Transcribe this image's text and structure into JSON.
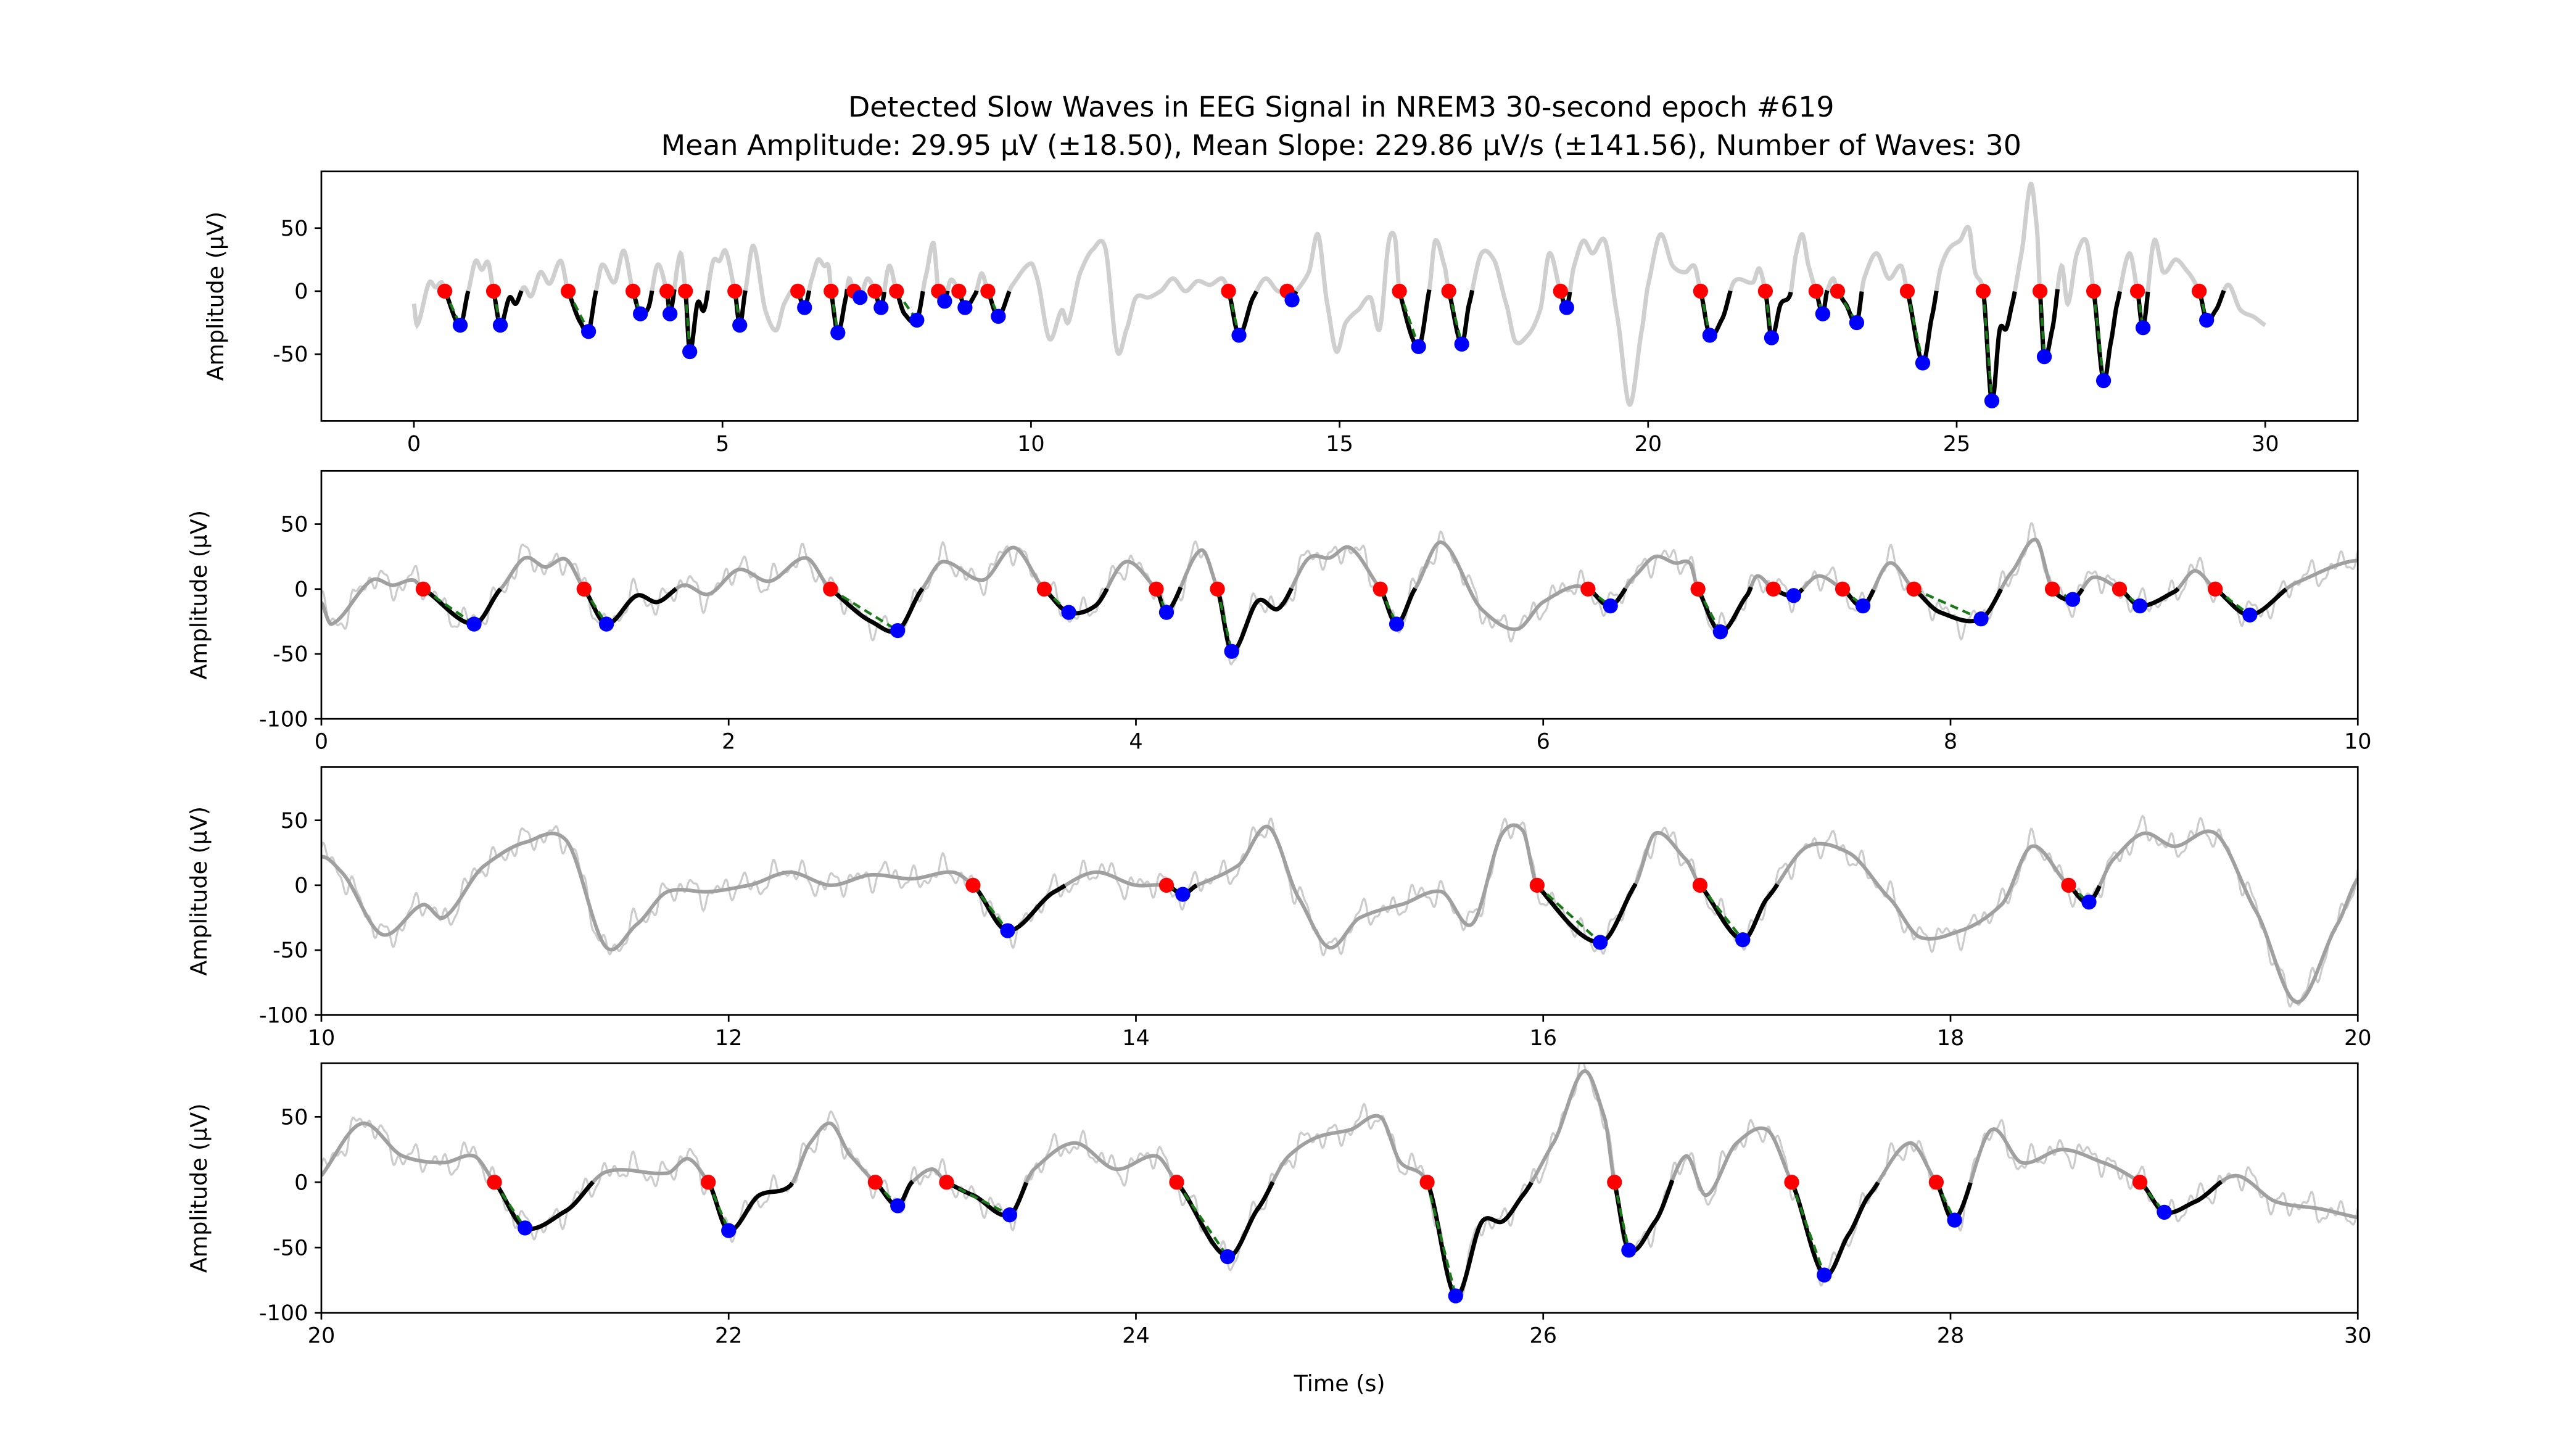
{
  "chart_data": {
    "type": "line",
    "title": "Detected Slow Waves in EEG Signal in NREM3 30-second epoch #619",
    "subtitle": "Mean Amplitude: 29.95 µV (±18.50), Mean Slope: 229.86 µV/s (±141.56), Number of Waves: 30",
    "xlabel": "Time (s)",
    "ylabel": "Amplitude (µV)",
    "colors": {
      "raw": "#cccccc",
      "smooth_overview": "#cfcfcf",
      "smooth": "#a0a0a0",
      "wave": "#000000",
      "start": "#ff0000",
      "trough": "#0000ff",
      "slope": "#1a7a1a"
    },
    "panels": [
      {
        "xlim": [
          -1.5,
          31.5
        ],
        "ylim": [
          -103,
          95
        ],
        "xticks": [
          0,
          5,
          10,
          15,
          20,
          25,
          30
        ],
        "yticks": [
          -50,
          0,
          50
        ],
        "show_raw": false,
        "xlabel": ""
      },
      {
        "xlim": [
          0,
          10
        ],
        "ylim": [
          -100,
          91
        ],
        "xticks": [
          0,
          2,
          4,
          6,
          8,
          10
        ],
        "yticks": [
          -100,
          -50,
          0,
          50
        ],
        "show_raw": true,
        "xlabel": ""
      },
      {
        "xlim": [
          10,
          20
        ],
        "ylim": [
          -100,
          91
        ],
        "xticks": [
          10,
          12,
          14,
          16,
          18,
          20
        ],
        "yticks": [
          -100,
          -50,
          0,
          50
        ],
        "show_raw": true,
        "xlabel": ""
      },
      {
        "xlim": [
          20,
          30
        ],
        "ylim": [
          -100,
          91
        ],
        "xticks": [
          20,
          22,
          24,
          26,
          28,
          30
        ],
        "yticks": [
          -100,
          -50,
          0,
          50
        ],
        "show_raw": true,
        "xlabel": "Time (s)"
      }
    ],
    "waves": [
      {
        "start": 0.5,
        "trough_t": 0.75,
        "trough_amp": -27
      },
      {
        "start": 1.29,
        "trough_t": 1.4,
        "trough_amp": -27
      },
      {
        "start": 2.5,
        "trough_t": 2.83,
        "trough_amp": -32
      },
      {
        "start": 3.55,
        "trough_t": 3.67,
        "trough_amp": -18
      },
      {
        "start": 4.1,
        "trough_t": 4.15,
        "trough_amp": -18
      },
      {
        "start": 4.4,
        "trough_t": 4.47,
        "trough_amp": -48
      },
      {
        "start": 5.2,
        "trough_t": 5.28,
        "trough_amp": -27
      },
      {
        "start": 6.22,
        "trough_t": 6.33,
        "trough_amp": -13
      },
      {
        "start": 6.76,
        "trough_t": 6.87,
        "trough_amp": -33
      },
      {
        "start": 7.13,
        "trough_t": 7.23,
        "trough_amp": -5
      },
      {
        "start": 7.47,
        "trough_t": 7.57,
        "trough_amp": -13
      },
      {
        "start": 7.82,
        "trough_t": 8.15,
        "trough_amp": -23
      },
      {
        "start": 8.5,
        "trough_t": 8.6,
        "trough_amp": -8
      },
      {
        "start": 8.83,
        "trough_t": 8.93,
        "trough_amp": -13
      },
      {
        "start": 9.3,
        "trough_t": 9.47,
        "trough_amp": -20
      },
      {
        "start": 13.2,
        "trough_t": 13.37,
        "trough_amp": -35
      },
      {
        "start": 14.15,
        "trough_t": 14.23,
        "trough_amp": -7
      },
      {
        "start": 15.97,
        "trough_t": 16.28,
        "trough_amp": -44
      },
      {
        "start": 16.77,
        "trough_t": 16.98,
        "trough_amp": -42
      },
      {
        "start": 18.58,
        "trough_t": 18.68,
        "trough_amp": -13
      },
      {
        "start": 20.85,
        "trough_t": 21.0,
        "trough_amp": -35
      },
      {
        "start": 21.9,
        "trough_t": 22.0,
        "trough_amp": -37
      },
      {
        "start": 22.72,
        "trough_t": 22.83,
        "trough_amp": -18
      },
      {
        "start": 23.07,
        "trough_t": 23.38,
        "trough_amp": -25
      },
      {
        "start": 24.2,
        "trough_t": 24.45,
        "trough_amp": -57
      },
      {
        "start": 25.43,
        "trough_t": 25.57,
        "trough_amp": -87
      },
      {
        "start": 26.35,
        "trough_t": 26.42,
        "trough_amp": -52
      },
      {
        "start": 27.22,
        "trough_t": 27.38,
        "trough_amp": -71
      },
      {
        "start": 27.93,
        "trough_t": 28.02,
        "trough_amp": -29
      },
      {
        "start": 28.93,
        "trough_t": 29.05,
        "trough_amp": -23
      }
    ],
    "signal_keypoints": [
      [
        0,
        -10
      ],
      [
        0.05,
        -27
      ],
      [
        0.25,
        7
      ],
      [
        0.35,
        3
      ],
      [
        0.45,
        7
      ],
      [
        0.5,
        0
      ],
      [
        0.75,
        -27
      ],
      [
        0.88,
        0
      ],
      [
        1.0,
        24
      ],
      [
        1.1,
        17
      ],
      [
        1.2,
        23
      ],
      [
        1.29,
        0
      ],
      [
        1.4,
        -27
      ],
      [
        1.55,
        -5
      ],
      [
        1.65,
        -10
      ],
      [
        1.78,
        3
      ],
      [
        1.9,
        -4
      ],
      [
        2.05,
        15
      ],
      [
        2.2,
        6
      ],
      [
        2.38,
        24
      ],
      [
        2.5,
        0
      ],
      [
        2.7,
        -25
      ],
      [
        2.83,
        -32
      ],
      [
        2.95,
        0
      ],
      [
        3.05,
        21
      ],
      [
        3.25,
        7
      ],
      [
        3.4,
        32
      ],
      [
        3.55,
        0
      ],
      [
        3.67,
        -18
      ],
      [
        3.8,
        -13
      ],
      [
        3.95,
        21
      ],
      [
        4.1,
        0
      ],
      [
        4.15,
        -18
      ],
      [
        4.32,
        30
      ],
      [
        4.4,
        0
      ],
      [
        4.47,
        -48
      ],
      [
        4.6,
        -9
      ],
      [
        4.7,
        -15
      ],
      [
        4.85,
        24
      ],
      [
        4.95,
        24
      ],
      [
        5.05,
        32
      ],
      [
        5.2,
        0
      ],
      [
        5.28,
        -27
      ],
      [
        5.37,
        0
      ],
      [
        5.5,
        36
      ],
      [
        5.7,
        -16
      ],
      [
        5.87,
        -31
      ],
      [
        6.0,
        -10
      ],
      [
        6.15,
        2
      ],
      [
        6.22,
        0
      ],
      [
        6.33,
        -13
      ],
      [
        6.45,
        10
      ],
      [
        6.55,
        25
      ],
      [
        6.65,
        20
      ],
      [
        6.72,
        20
      ],
      [
        6.76,
        0
      ],
      [
        6.87,
        -33
      ],
      [
        7.0,
        -5
      ],
      [
        7.05,
        10
      ],
      [
        7.13,
        0
      ],
      [
        7.23,
        -5
      ],
      [
        7.35,
        10
      ],
      [
        7.47,
        0
      ],
      [
        7.57,
        -13
      ],
      [
        7.7,
        20
      ],
      [
        7.82,
        0
      ],
      [
        7.95,
        -18
      ],
      [
        8.15,
        -23
      ],
      [
        8.3,
        13
      ],
      [
        8.42,
        38
      ],
      [
        8.5,
        0
      ],
      [
        8.6,
        -8
      ],
      [
        8.7,
        9
      ],
      [
        8.83,
        0
      ],
      [
        8.93,
        -13
      ],
      [
        9.1,
        -2
      ],
      [
        9.2,
        14
      ],
      [
        9.3,
        0
      ],
      [
        9.47,
        -20
      ],
      [
        9.7,
        5
      ],
      [
        10,
        22
      ],
      [
        10.1,
        10
      ],
      [
        10.3,
        -38
      ],
      [
        10.5,
        -15
      ],
      [
        10.6,
        -25
      ],
      [
        10.8,
        15
      ],
      [
        11.0,
        33
      ],
      [
        11.2,
        35
      ],
      [
        11.4,
        -48
      ],
      [
        11.55,
        -30
      ],
      [
        11.7,
        -5
      ],
      [
        11.9,
        -5
      ],
      [
        12.1,
        0
      ],
      [
        12.3,
        10
      ],
      [
        12.5,
        0
      ],
      [
        12.7,
        8
      ],
      [
        12.9,
        5
      ],
      [
        13.1,
        10
      ],
      [
        13.2,
        0
      ],
      [
        13.37,
        -35
      ],
      [
        13.6,
        -5
      ],
      [
        13.8,
        10
      ],
      [
        14.0,
        0
      ],
      [
        14.15,
        0
      ],
      [
        14.23,
        -7
      ],
      [
        14.3,
        0
      ],
      [
        14.5,
        15
      ],
      [
        14.65,
        45
      ],
      [
        14.8,
        -10
      ],
      [
        14.95,
        -48
      ],
      [
        15.1,
        -25
      ],
      [
        15.3,
        -15
      ],
      [
        15.5,
        -5
      ],
      [
        15.65,
        -30
      ],
      [
        15.8,
        40
      ],
      [
        15.9,
        42
      ],
      [
        15.97,
        0
      ],
      [
        16.28,
        -44
      ],
      [
        16.45,
        0
      ],
      [
        16.55,
        40
      ],
      [
        16.7,
        20
      ],
      [
        16.77,
        0
      ],
      [
        16.98,
        -42
      ],
      [
        17.1,
        -10
      ],
      [
        17.3,
        30
      ],
      [
        17.5,
        25
      ],
      [
        17.7,
        -10
      ],
      [
        17.85,
        -40
      ],
      [
        18.05,
        -35
      ],
      [
        18.25,
        -15
      ],
      [
        18.4,
        30
      ],
      [
        18.58,
        0
      ],
      [
        18.68,
        -13
      ],
      [
        18.8,
        20
      ],
      [
        18.95,
        40
      ],
      [
        19.1,
        30
      ],
      [
        19.3,
        40
      ],
      [
        19.5,
        -20
      ],
      [
        19.7,
        -90
      ],
      [
        19.9,
        -30
      ],
      [
        20,
        5
      ],
      [
        20.2,
        45
      ],
      [
        20.4,
        20
      ],
      [
        20.6,
        15
      ],
      [
        20.75,
        20
      ],
      [
        20.85,
        0
      ],
      [
        21.0,
        -35
      ],
      [
        21.2,
        -22
      ],
      [
        21.4,
        8
      ],
      [
        21.7,
        7
      ],
      [
        21.8,
        18
      ],
      [
        21.9,
        0
      ],
      [
        22.0,
        -37
      ],
      [
        22.15,
        -10
      ],
      [
        22.3,
        -3
      ],
      [
        22.4,
        30
      ],
      [
        22.5,
        45
      ],
      [
        22.6,
        20
      ],
      [
        22.72,
        0
      ],
      [
        22.83,
        -18
      ],
      [
        22.9,
        0
      ],
      [
        23.0,
        10
      ],
      [
        23.07,
        0
      ],
      [
        23.2,
        -10
      ],
      [
        23.38,
        -25
      ],
      [
        23.5,
        10
      ],
      [
        23.7,
        30
      ],
      [
        23.9,
        10
      ],
      [
        24.1,
        20
      ],
      [
        24.2,
        0
      ],
      [
        24.45,
        -57
      ],
      [
        24.6,
        -20
      ],
      [
        24.75,
        20
      ],
      [
        24.9,
        35
      ],
      [
        25.05,
        40
      ],
      [
        25.2,
        50
      ],
      [
        25.3,
        15
      ],
      [
        25.43,
        0
      ],
      [
        25.57,
        -87
      ],
      [
        25.7,
        -30
      ],
      [
        25.8,
        -30
      ],
      [
        25.9,
        -10
      ],
      [
        26.05,
        30
      ],
      [
        26.2,
        85
      ],
      [
        26.3,
        50
      ],
      [
        26.35,
        0
      ],
      [
        26.42,
        -52
      ],
      [
        26.55,
        -30
      ],
      [
        26.7,
        20
      ],
      [
        26.8,
        -10
      ],
      [
        26.95,
        30
      ],
      [
        27.1,
        40
      ],
      [
        27.22,
        0
      ],
      [
        27.38,
        -71
      ],
      [
        27.5,
        -40
      ],
      [
        27.6,
        -10
      ],
      [
        27.8,
        30
      ],
      [
        27.93,
        0
      ],
      [
        28.02,
        -29
      ],
      [
        28.2,
        40
      ],
      [
        28.35,
        15
      ],
      [
        28.55,
        25
      ],
      [
        28.75,
        15
      ],
      [
        28.93,
        0
      ],
      [
        29.05,
        -23
      ],
      [
        29.2,
        -15
      ],
      [
        29.4,
        5
      ],
      [
        29.6,
        -15
      ],
      [
        29.8,
        -20
      ],
      [
        30,
        -27
      ]
    ]
  }
}
